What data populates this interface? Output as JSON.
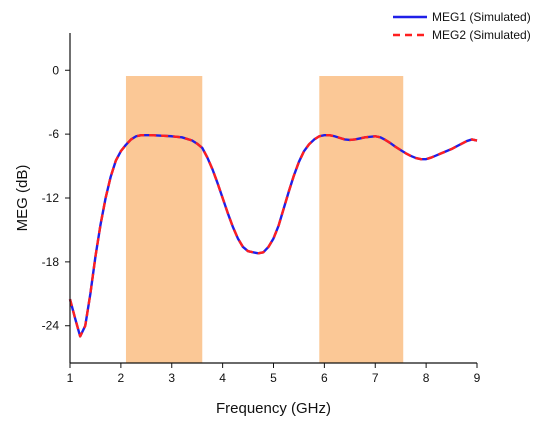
{
  "chart_data": {
    "type": "line",
    "title": "",
    "xlabel": "Frequency (GHz)",
    "ylabel": "MEG (dB)",
    "xlim": [
      1,
      9
    ],
    "ylim": [
      -27.5,
      3.5
    ],
    "xticks": [
      1,
      2,
      3,
      4,
      5,
      6,
      7,
      8,
      9
    ],
    "yticks": [
      0,
      -6,
      -12,
      -18,
      -24
    ],
    "grid": false,
    "legend_position": "top-right",
    "highlight_bands": [
      {
        "x0": 2.1,
        "x1": 3.6,
        "color": "#fbc896"
      },
      {
        "x0": 5.9,
        "x1": 7.55,
        "color": "#fbc896"
      }
    ],
    "series": [
      {
        "name": "MEG1 (Simulated)",
        "color": "#1f1fe8",
        "style": "solid",
        "x": [
          1.0,
          1.1,
          1.2,
          1.3,
          1.4,
          1.5,
          1.6,
          1.7,
          1.8,
          1.9,
          2.0,
          2.1,
          2.2,
          2.3,
          2.4,
          2.6,
          2.8,
          3.0,
          3.2,
          3.4,
          3.5,
          3.6,
          3.7,
          3.8,
          3.9,
          4.0,
          4.1,
          4.2,
          4.3,
          4.4,
          4.5,
          4.6,
          4.7,
          4.8,
          4.9,
          5.0,
          5.1,
          5.2,
          5.3,
          5.4,
          5.5,
          5.6,
          5.7,
          5.8,
          5.9,
          6.0,
          6.1,
          6.2,
          6.3,
          6.4,
          6.5,
          6.6,
          6.7,
          6.8,
          6.9,
          7.0,
          7.1,
          7.2,
          7.3,
          7.4,
          7.5,
          7.6,
          7.7,
          7.8,
          7.9,
          8.0,
          8.1,
          8.2,
          8.3,
          8.4,
          8.5,
          8.6,
          8.7,
          8.8,
          8.9,
          9.0
        ],
        "y": [
          -21.5,
          -23.3,
          -25.0,
          -24.0,
          -21.0,
          -17.5,
          -14.5,
          -12.0,
          -10.0,
          -8.5,
          -7.6,
          -7.0,
          -6.5,
          -6.2,
          -6.1,
          -6.1,
          -6.15,
          -6.2,
          -6.3,
          -6.6,
          -6.9,
          -7.3,
          -8.2,
          -9.3,
          -10.6,
          -12.0,
          -13.4,
          -14.7,
          -15.8,
          -16.6,
          -17.0,
          -17.1,
          -17.2,
          -17.1,
          -16.6,
          -15.8,
          -14.6,
          -13.0,
          -11.4,
          -9.9,
          -8.6,
          -7.6,
          -6.95,
          -6.5,
          -6.2,
          -6.1,
          -6.1,
          -6.2,
          -6.35,
          -6.5,
          -6.55,
          -6.5,
          -6.4,
          -6.3,
          -6.25,
          -6.2,
          -6.3,
          -6.55,
          -6.85,
          -7.2,
          -7.5,
          -7.8,
          -8.05,
          -8.25,
          -8.35,
          -8.35,
          -8.2,
          -8.0,
          -7.8,
          -7.6,
          -7.4,
          -7.15,
          -6.9,
          -6.65,
          -6.5,
          -6.6
        ]
      },
      {
        "name": "MEG2 (Simulated)",
        "color": "#ff1f1f",
        "style": "dashed",
        "x": [
          1.0,
          1.1,
          1.2,
          1.3,
          1.4,
          1.5,
          1.6,
          1.7,
          1.8,
          1.9,
          2.0,
          2.1,
          2.2,
          2.3,
          2.4,
          2.6,
          2.8,
          3.0,
          3.2,
          3.4,
          3.5,
          3.6,
          3.7,
          3.8,
          3.9,
          4.0,
          4.1,
          4.2,
          4.3,
          4.4,
          4.5,
          4.6,
          4.7,
          4.8,
          4.9,
          5.0,
          5.1,
          5.2,
          5.3,
          5.4,
          5.5,
          5.6,
          5.7,
          5.8,
          5.9,
          6.0,
          6.1,
          6.2,
          6.3,
          6.4,
          6.5,
          6.6,
          6.7,
          6.8,
          6.9,
          7.0,
          7.1,
          7.2,
          7.3,
          7.4,
          7.5,
          7.6,
          7.7,
          7.8,
          7.9,
          8.0,
          8.1,
          8.2,
          8.3,
          8.4,
          8.5,
          8.6,
          8.7,
          8.8,
          8.9,
          9.0
        ],
        "y": [
          -21.5,
          -23.3,
          -25.0,
          -24.0,
          -21.0,
          -17.5,
          -14.5,
          -12.0,
          -10.0,
          -8.5,
          -7.6,
          -7.0,
          -6.5,
          -6.2,
          -6.1,
          -6.1,
          -6.15,
          -6.2,
          -6.3,
          -6.6,
          -6.9,
          -7.3,
          -8.2,
          -9.3,
          -10.6,
          -12.0,
          -13.4,
          -14.7,
          -15.8,
          -16.6,
          -17.0,
          -17.1,
          -17.2,
          -17.1,
          -16.6,
          -15.8,
          -14.6,
          -13.0,
          -11.4,
          -9.9,
          -8.6,
          -7.6,
          -6.95,
          -6.5,
          -6.2,
          -6.1,
          -6.1,
          -6.2,
          -6.35,
          -6.5,
          -6.55,
          -6.5,
          -6.4,
          -6.3,
          -6.25,
          -6.2,
          -6.3,
          -6.55,
          -6.85,
          -7.2,
          -7.5,
          -7.8,
          -8.05,
          -8.25,
          -8.35,
          -8.35,
          -8.2,
          -8.0,
          -7.8,
          -7.6,
          -7.4,
          -7.15,
          -6.9,
          -6.65,
          -6.5,
          -6.6
        ]
      }
    ]
  }
}
